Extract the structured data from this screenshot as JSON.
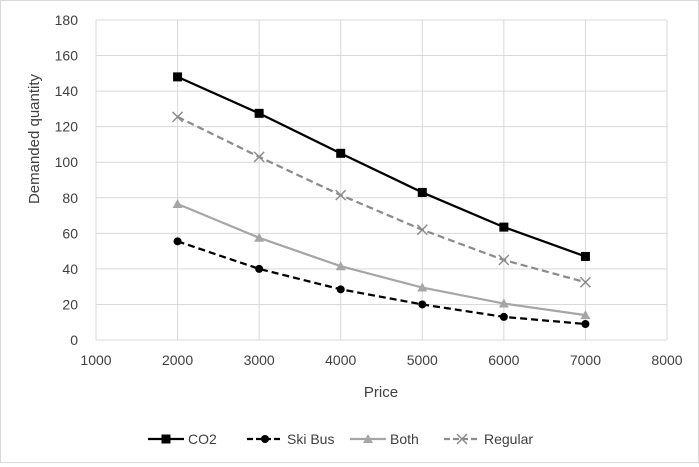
{
  "chart_data": {
    "type": "line",
    "title": "",
    "xlabel": "Price",
    "ylabel": "Demanded quantity",
    "xlim": [
      1000,
      8000
    ],
    "ylim": [
      0,
      180
    ],
    "xticks": [
      1000,
      2000,
      3000,
      4000,
      5000,
      6000,
      7000,
      8000
    ],
    "yticks": [
      0,
      20,
      40,
      60,
      80,
      100,
      120,
      140,
      160,
      180
    ],
    "xtick_labels": [
      "1000",
      "2000",
      "3000",
      "4000",
      "5000",
      "6000",
      "7000",
      "8000"
    ],
    "ytick_labels": [
      "0",
      "20",
      "40",
      "60",
      "80",
      "100",
      "120",
      "140",
      "160",
      "180"
    ],
    "grid": true,
    "legend_position": "bottom",
    "x": [
      2000,
      3000,
      4000,
      5000,
      6000,
      7000
    ],
    "series": [
      {
        "name": "CO2",
        "values": [
          148,
          127.5,
          105,
          83,
          63.5,
          47
        ],
        "color": "#000000",
        "dash": "solid",
        "marker": "square"
      },
      {
        "name": "Ski Bus",
        "values": [
          55.5,
          40,
          28.5,
          20,
          13,
          9
        ],
        "color": "#000000",
        "dash": "dashed",
        "marker": "circle"
      },
      {
        "name": "Both",
        "values": [
          76.5,
          57.5,
          41.5,
          29.5,
          20.5,
          14
        ],
        "color": "#a6a6a6",
        "dash": "solid",
        "marker": "triangle"
      },
      {
        "name": "Regular",
        "values": [
          125.5,
          103,
          81.5,
          62,
          45,
          32.5
        ],
        "color": "#8c8c8c",
        "dash": "dashed",
        "marker": "x"
      }
    ]
  }
}
